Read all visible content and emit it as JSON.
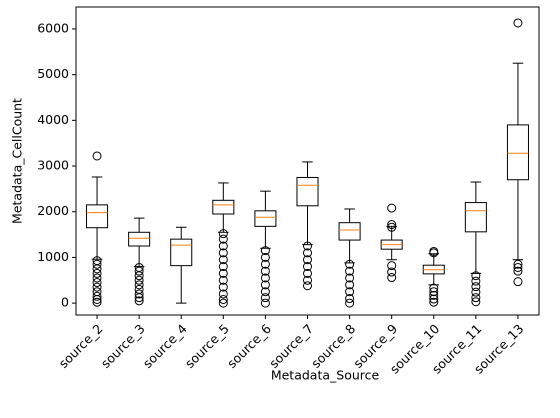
{
  "chart_data": {
    "type": "boxplot",
    "xlabel": "Metadata_Source",
    "ylabel": "Metadata_CellCount",
    "categories": [
      "source_2",
      "source_3",
      "source_4",
      "source_5",
      "source_6",
      "source_7",
      "source_8",
      "source_9",
      "source_10",
      "source_11",
      "source_13"
    ],
    "boxes": [
      {
        "whislo": 960,
        "q1": 1650,
        "med": 1980,
        "q3": 2150,
        "whishi": 2760,
        "fliers": [
          3220,
          930,
          850,
          750,
          650,
          550,
          450,
          350,
          250,
          150,
          80,
          20
        ]
      },
      {
        "whislo": 800,
        "q1": 1250,
        "med": 1420,
        "q3": 1550,
        "whishi": 1860,
        "fliers": [
          780,
          700,
          600,
          500,
          400,
          300,
          200,
          120,
          50
        ]
      },
      {
        "whislo": 0,
        "q1": 820,
        "med": 1270,
        "q3": 1400,
        "whishi": 1660,
        "fliers": []
      },
      {
        "whislo": 1550,
        "q1": 1950,
        "med": 2150,
        "q3": 2250,
        "whishi": 2630,
        "fliers": [
          1520,
          1400,
          1250,
          1100,
          950,
          800,
          650,
          500,
          350,
          200,
          80,
          0
        ]
      },
      {
        "whislo": 1200,
        "q1": 1680,
        "med": 1880,
        "q3": 2020,
        "whishi": 2450,
        "fliers": [
          1150,
          1000,
          850,
          700,
          550,
          400,
          250,
          120,
          0
        ]
      },
      {
        "whislo": 1280,
        "q1": 2130,
        "med": 2580,
        "q3": 2750,
        "whishi": 3090,
        "fliers": [
          1250,
          1100,
          950,
          800,
          650,
          500,
          380
        ]
      },
      {
        "whislo": 880,
        "q1": 1380,
        "med": 1600,
        "q3": 1760,
        "whishi": 2060,
        "fliers": [
          850,
          700,
          550,
          400,
          250,
          100,
          0
        ]
      },
      {
        "whislo": 950,
        "q1": 1180,
        "med": 1280,
        "q3": 1380,
        "whishi": 1680,
        "fliers": [
          2080,
          1720,
          1660,
          820,
          680,
          560
        ]
      },
      {
        "whislo": 400,
        "q1": 640,
        "med": 730,
        "q3": 830,
        "whishi": 1080,
        "fliers": [
          1130,
          1100,
          330,
          250,
          170,
          90,
          20
        ]
      },
      {
        "whislo": 650,
        "q1": 1560,
        "med": 2020,
        "q3": 2200,
        "whishi": 2650,
        "fliers": [
          600,
          480,
          360,
          240,
          120,
          30
        ]
      },
      {
        "whislo": 950,
        "q1": 2700,
        "med": 3280,
        "q3": 3900,
        "whishi": 5250,
        "fliers": [
          6130,
          850,
          780,
          700,
          470
        ]
      }
    ],
    "box_color": "#000000",
    "median_color": "#ff7f0e",
    "ylim": [
      -260,
      6480
    ],
    "yticks": [
      0,
      1000,
      2000,
      3000,
      4000,
      5000,
      6000
    ]
  }
}
